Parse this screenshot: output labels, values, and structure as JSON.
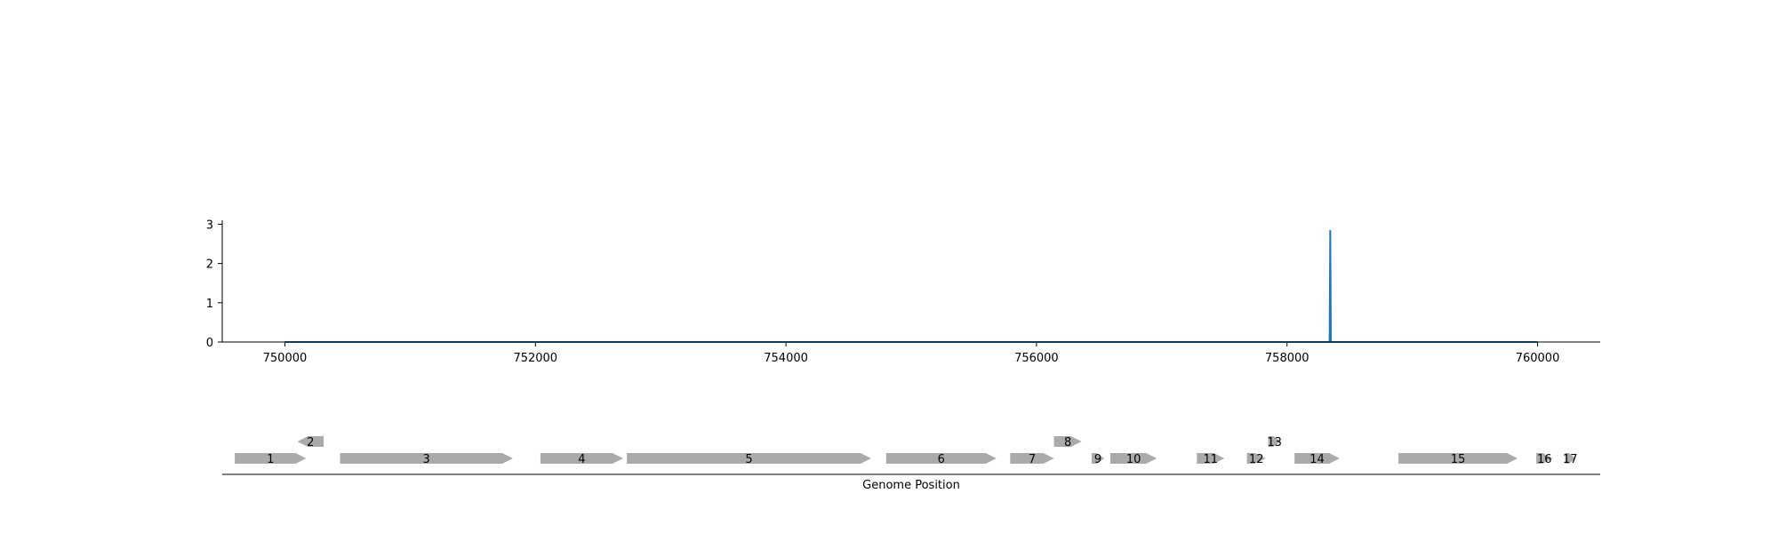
{
  "chart_data": [
    {
      "type": "line",
      "xlabel": "",
      "ylabel": "",
      "xlim": [
        749500,
        760500
      ],
      "ylim": [
        0,
        3.1
      ],
      "x_ticks": [
        750000,
        752000,
        754000,
        756000,
        758000,
        760000
      ],
      "y_ticks": [
        0,
        1,
        2,
        3
      ],
      "grid": false,
      "series": [
        {
          "color": "#1f77b4",
          "points": [
            [
              750000,
              0
            ],
            [
              758340,
              0
            ],
            [
              758345,
              2.85
            ],
            [
              758350,
              0
            ],
            [
              760000,
              0
            ]
          ]
        }
      ]
    },
    {
      "type": "gene-track",
      "xlabel": "Genome Position",
      "xlim": [
        749500,
        760500
      ],
      "color": "#aaaaaa",
      "genes": [
        {
          "label": "1",
          "start": 749600,
          "end": 750170,
          "strand": "+",
          "row": 0
        },
        {
          "label": "2",
          "start": 750100,
          "end": 750310,
          "strand": "-",
          "row": 1
        },
        {
          "label": "3",
          "start": 750440,
          "end": 751820,
          "strand": "+",
          "row": 0
        },
        {
          "label": "4",
          "start": 752040,
          "end": 752700,
          "strand": "+",
          "row": 0
        },
        {
          "label": "5",
          "start": 752730,
          "end": 754680,
          "strand": "+",
          "row": 0
        },
        {
          "label": "6",
          "start": 754800,
          "end": 755680,
          "strand": "+",
          "row": 0
        },
        {
          "label": "7",
          "start": 755790,
          "end": 756140,
          "strand": "+",
          "row": 0
        },
        {
          "label": "8",
          "start": 756140,
          "end": 756360,
          "strand": "+",
          "row": 1
        },
        {
          "label": "9",
          "start": 756440,
          "end": 756540,
          "strand": "+",
          "row": 0
        },
        {
          "label": "10",
          "start": 756590,
          "end": 756960,
          "strand": "+",
          "row": 0
        },
        {
          "label": "11",
          "start": 757280,
          "end": 757500,
          "strand": "+",
          "row": 0
        },
        {
          "label": "12",
          "start": 757680,
          "end": 757830,
          "strand": "+",
          "row": 0
        },
        {
          "label": "13",
          "start": 757850,
          "end": 757950,
          "strand": "+",
          "row": 1
        },
        {
          "label": "14",
          "start": 758060,
          "end": 758420,
          "strand": "+",
          "row": 0
        },
        {
          "label": "15",
          "start": 758890,
          "end": 759840,
          "strand": "+",
          "row": 0
        },
        {
          "label": "16",
          "start": 759990,
          "end": 760120,
          "strand": "+",
          "row": 0
        },
        {
          "label": "17",
          "start": 760220,
          "end": 760300,
          "strand": "+",
          "row": 0
        }
      ]
    }
  ]
}
